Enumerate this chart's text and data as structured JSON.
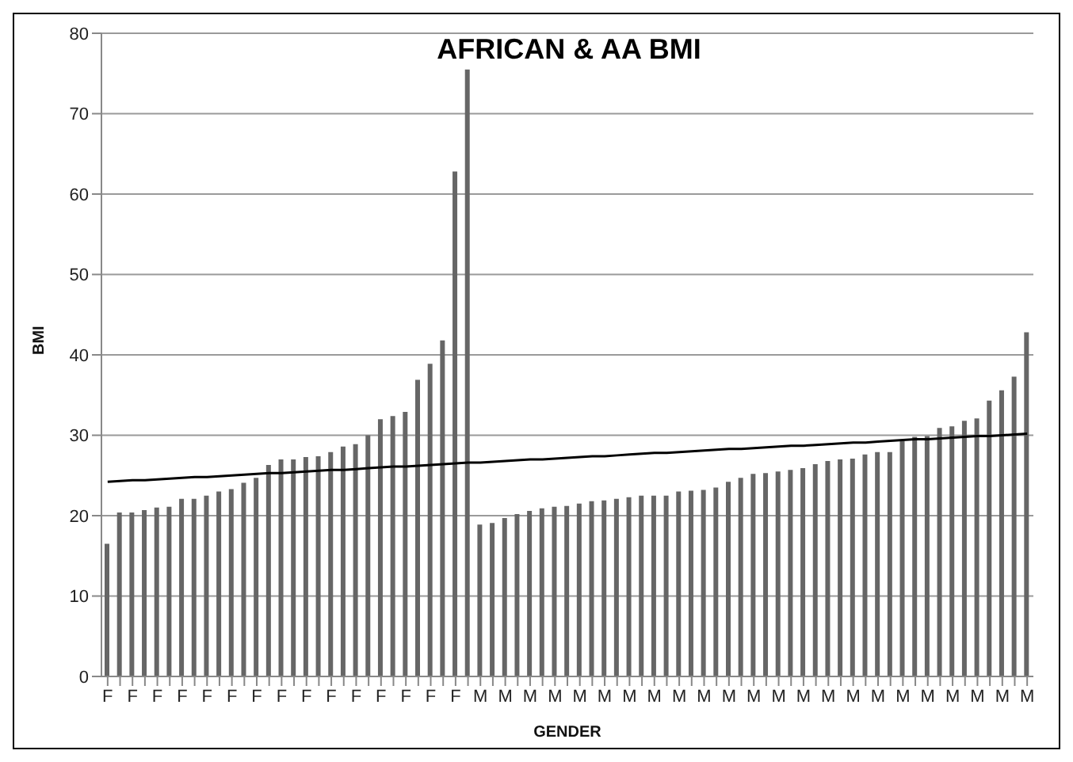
{
  "chart_data": {
    "type": "bar",
    "title": "AFRICAN & AA BMI",
    "xlabel": "GENDER",
    "ylabel": "BMI",
    "categories": [
      "F",
      null,
      "F",
      null,
      "F",
      null,
      "F",
      null,
      "F",
      null,
      "F",
      null,
      "F",
      null,
      "F",
      null,
      "F",
      null,
      "F",
      null,
      "F",
      null,
      "F",
      null,
      "F",
      null,
      "F",
      null,
      "F",
      null,
      "M",
      null,
      "M",
      null,
      "M",
      null,
      "M",
      null,
      "M",
      null,
      "M",
      null,
      "M",
      null,
      "M",
      null,
      "M",
      null,
      "M",
      null,
      "M",
      null,
      "M",
      null,
      "M",
      null,
      "M",
      null,
      "M",
      null,
      "M",
      null,
      "M",
      null,
      "M",
      null,
      "M",
      null,
      "M",
      null,
      "M",
      null,
      "M",
      null,
      "M"
    ],
    "series": [
      {
        "color": "#666666",
        "values": [
          16.5,
          20.4,
          20.4,
          20.7,
          21.0,
          21.1,
          22.1,
          22.1,
          22.5,
          23.0,
          23.3,
          24.1,
          24.7,
          26.3,
          27.0,
          27.0,
          27.3,
          27.4,
          27.9,
          28.6,
          28.9,
          30.0,
          32.0,
          32.4,
          32.9,
          36.9,
          38.9,
          41.8,
          62.8,
          75.5,
          18.9,
          19.1,
          19.7,
          20.2,
          20.6,
          20.9,
          21.1,
          21.2,
          21.5,
          21.8,
          21.9,
          22.1,
          22.3,
          22.5,
          22.5,
          22.5,
          23.0,
          23.1,
          23.2,
          23.5,
          24.2,
          24.7,
          25.2,
          25.3,
          25.5,
          25.7,
          25.9,
          26.4,
          26.8,
          27.0,
          27.1,
          27.6,
          27.9,
          27.9,
          29.3,
          29.8,
          29.9,
          30.9,
          31.1,
          31.8,
          32.1,
          34.3,
          35.6,
          37.3,
          42.8
        ]
      },
      {
        "type": "line",
        "color": "#000000",
        "values": [
          24.2,
          24.3,
          24.4,
          24.4,
          24.5,
          24.6,
          24.7,
          24.8,
          24.8,
          24.9,
          25.0,
          25.1,
          25.2,
          25.3,
          25.3,
          25.4,
          25.5,
          25.6,
          25.7,
          25.7,
          25.8,
          25.9,
          26.0,
          26.1,
          26.1,
          26.2,
          26.3,
          26.4,
          26.5,
          26.6,
          26.6,
          26.7,
          26.8,
          26.9,
          27.0,
          27.0,
          27.1,
          27.2,
          27.3,
          27.4,
          27.4,
          27.5,
          27.6,
          27.7,
          27.8,
          27.8,
          27.9,
          28.0,
          28.1,
          28.2,
          28.3,
          28.3,
          28.4,
          28.5,
          28.6,
          28.7,
          28.7,
          28.8,
          28.9,
          29.0,
          29.1,
          29.1,
          29.2,
          29.3,
          29.4,
          29.5,
          29.5,
          29.6,
          29.7,
          29.8,
          29.9,
          29.9,
          30.0,
          30.1,
          30.2
        ]
      }
    ],
    "ylim": [
      0,
      80
    ],
    "yticks": [
      0,
      10,
      20,
      30,
      40,
      50,
      60,
      70,
      80
    ],
    "grid": "y",
    "marker": "none",
    "line_style": "solid",
    "legend": false
  }
}
